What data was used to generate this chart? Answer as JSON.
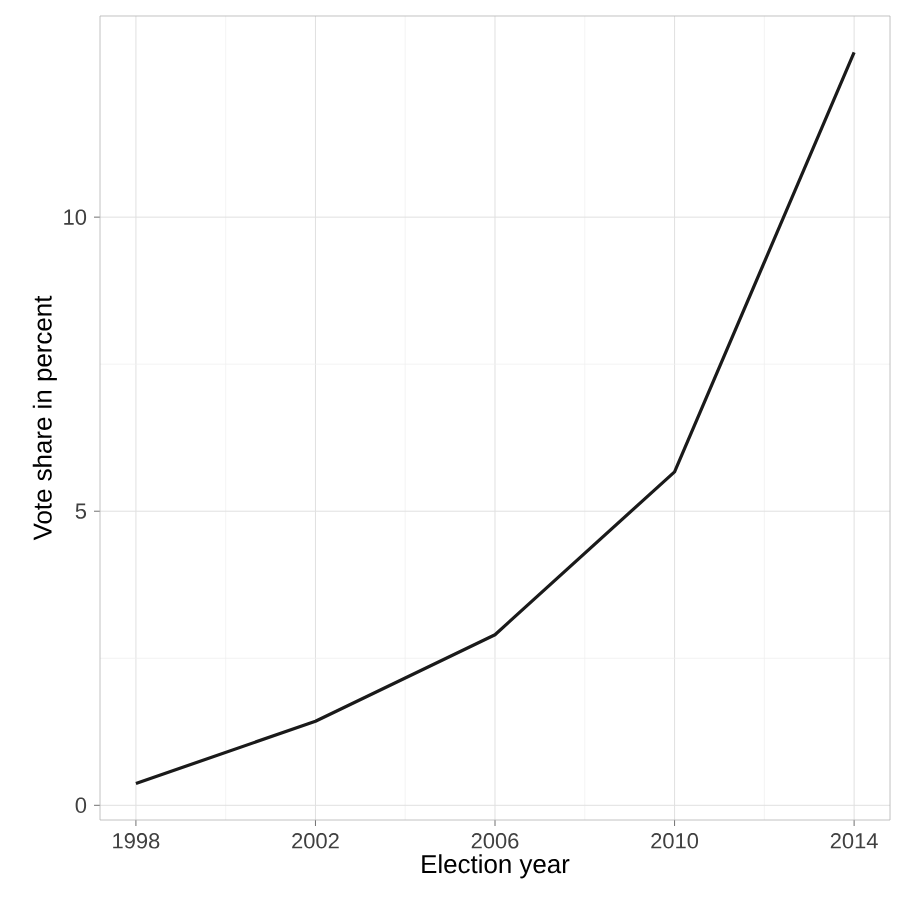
{
  "chart_data": {
    "type": "line",
    "xlabel": "Election year",
    "ylabel": "Vote share in percent",
    "x": [
      1998,
      2002,
      2006,
      2010,
      2014
    ],
    "series": [
      {
        "color": "#1a1a1a",
        "values": [
          0.37,
          1.43,
          2.9,
          5.67,
          12.8
        ]
      }
    ],
    "xlim": [
      1997.2,
      2014.8
    ],
    "ylim": [
      -0.25,
      13.42
    ],
    "xticks": [
      1998,
      2002,
      2006,
      2010,
      2014
    ],
    "yticks": [
      0,
      5,
      10
    ],
    "grid": true,
    "marker": "none",
    "line_style": "solid"
  }
}
